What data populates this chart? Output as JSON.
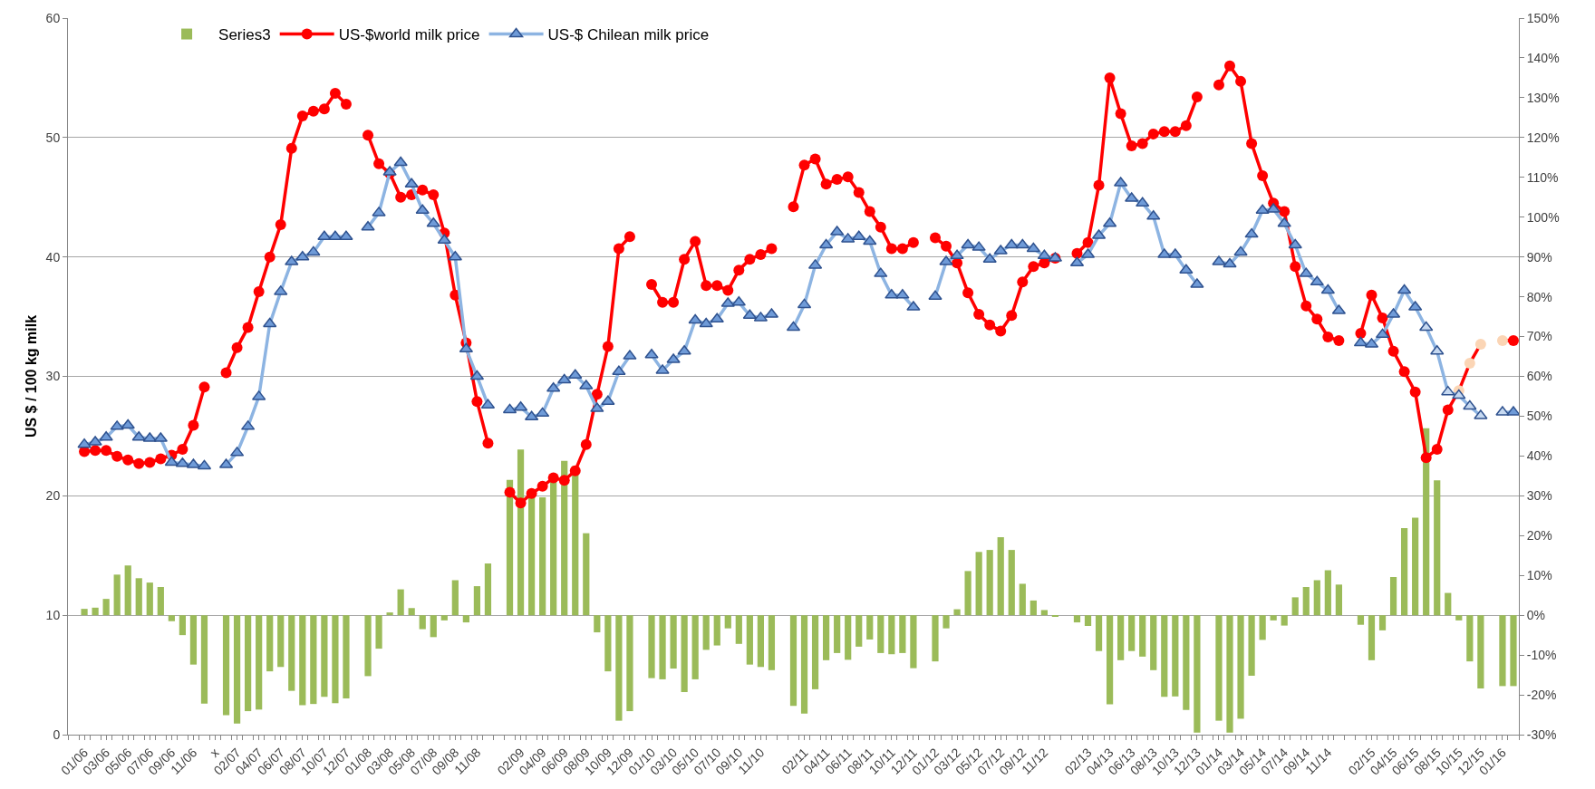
{
  "chart_data": {
    "type": "line",
    "ylabel": "US $ / 100 kg milk",
    "categories": [
      null,
      "01/06",
      null,
      "03/06",
      null,
      "05/06",
      null,
      "07/06",
      null,
      "09/06",
      null,
      "11/06",
      null,
      "x",
      null,
      "02/07",
      null,
      "04/07",
      null,
      "06/07",
      null,
      "08/07",
      null,
      "10/07",
      null,
      "12/07",
      null,
      "01/08",
      null,
      "03/08",
      null,
      "05/08",
      null,
      "07/08",
      null,
      "09/08",
      null,
      "11/08",
      null,
      null,
      null,
      "02/09",
      null,
      "04/09",
      null,
      "06/09",
      null,
      "08/09",
      null,
      "10/09",
      null,
      "12/09",
      null,
      "01/10",
      null,
      "03/10",
      null,
      "05/10",
      null,
      "07/10",
      null,
      "09/10",
      null,
      "11/10",
      null,
      null,
      null,
      "02/11",
      null,
      "04/11",
      null,
      "06/11",
      null,
      "08/11",
      null,
      "10/11",
      null,
      "12/11",
      null,
      "01/12",
      null,
      "03/12",
      null,
      "05/12",
      null,
      "07/12",
      null,
      "09/12",
      null,
      "11/12",
      null,
      null,
      null,
      "02/13",
      null,
      "04/13",
      null,
      "06/13",
      null,
      "08/13",
      null,
      "10/13",
      null,
      "12/13",
      null,
      "01/14",
      null,
      "03/14",
      null,
      "05/14",
      null,
      "07/14",
      null,
      "09/14",
      null,
      "11/14",
      null,
      null,
      null,
      "02/15",
      null,
      "04/15",
      null,
      "06/15",
      null,
      "08/15",
      null,
      "10/15",
      null,
      "12/15",
      null,
      "01/16",
      null
    ],
    "series": [
      {
        "name": "Series3",
        "type": "bar",
        "axis": "y2",
        "color": "#9bbb59",
        "values": [
          null,
          1.6,
          1.9,
          4.1,
          10.2,
          12.5,
          9.3,
          8.2,
          7.1,
          -1.5,
          -5.0,
          -12.4,
          -22.2,
          null,
          -25.1,
          -27.2,
          -24.1,
          -23.7,
          -14.1,
          -13.0,
          -19.0,
          -22.6,
          -22.3,
          -20.5,
          -22.1,
          -20.9,
          null,
          -15.3,
          -8.4,
          0.7,
          6.5,
          1.8,
          -3.5,
          -5.5,
          -1.3,
          8.8,
          -1.8,
          7.3,
          13.0,
          null,
          34.0,
          41.6,
          30.0,
          29.6,
          33.5,
          38.8,
          37.5,
          20.6,
          -4.3,
          -14.1,
          -26.5,
          -24.1,
          null,
          -15.8,
          -16.1,
          -13.4,
          -19.3,
          -16.1,
          -8.7,
          -7.6,
          -3.3,
          -7.2,
          -12.4,
          -13.0,
          -13.8,
          null,
          -22.8,
          -24.7,
          -18.6,
          -11.3,
          -9.5,
          -11.2,
          -7.9,
          -6.1,
          -9.5,
          -9.8,
          -9.5,
          -13.3,
          null,
          -11.6,
          -3.3,
          1.5,
          11.1,
          15.9,
          16.4,
          19.6,
          16.4,
          7.9,
          3.7,
          1.3,
          -0.3,
          null,
          -1.8,
          -2.7,
          -9.0,
          -22.4,
          -11.3,
          -9.0,
          -10.4,
          -13.8,
          -20.5,
          -20.4,
          -23.8,
          -29.5,
          null,
          -26.5,
          -29.5,
          -26.0,
          -15.2,
          -6.2,
          -1.3,
          -2.6,
          4.5,
          7.1,
          8.8,
          11.3,
          7.7,
          null,
          -2.4,
          -11.3,
          -3.8,
          9.6,
          21.9,
          24.5,
          47.0,
          33.9,
          5.6,
          -1.3,
          -11.6,
          -18.4,
          null,
          -17.8,
          -17.8
        ]
      },
      {
        "name": "US-$world milk price",
        "marker": "circle",
        "color": "#ff0000",
        "values": [
          null,
          23.7,
          23.8,
          23.8,
          23.3,
          23.0,
          22.7,
          22.8,
          23.1,
          23.4,
          23.9,
          25.9,
          29.1,
          null,
          30.3,
          32.4,
          34.1,
          37.1,
          40.0,
          42.7,
          49.1,
          51.8,
          52.2,
          52.4,
          53.7,
          52.8,
          null,
          50.2,
          47.8,
          47.0,
          45.0,
          45.2,
          45.6,
          45.2,
          42.0,
          36.8,
          32.8,
          27.9,
          24.4,
          null,
          20.3,
          19.4,
          20.2,
          20.8,
          21.5,
          21.3,
          22.1,
          24.3,
          28.5,
          32.5,
          40.7,
          41.7,
          null,
          37.7,
          36.2,
          36.2,
          39.8,
          41.3,
          37.6,
          37.6,
          37.2,
          38.9,
          39.8,
          40.2,
          40.7,
          null,
          44.2,
          47.7,
          48.2,
          46.1,
          46.5,
          46.7,
          45.4,
          43.8,
          42.5,
          40.7,
          40.7,
          41.2,
          null,
          41.6,
          40.9,
          39.5,
          37.0,
          35.2,
          34.3,
          33.8,
          35.1,
          37.9,
          39.2,
          39.5,
          39.9,
          null,
          40.3,
          41.2,
          46.0,
          55.0,
          52.0,
          49.3,
          49.5,
          50.3,
          50.5,
          50.5,
          51.0,
          53.4,
          null,
          54.4,
          56.0,
          54.7,
          49.5,
          46.8,
          44.5,
          43.8,
          39.2,
          35.9,
          34.8,
          33.3,
          33.0,
          null,
          33.6,
          36.8,
          34.9,
          32.1,
          30.4,
          28.7,
          23.2,
          23.9,
          27.2,
          28.8,
          31.1,
          32.7,
          null,
          33.0,
          33.0
        ],
        "colors": [
          "#ff0000",
          "#ff0000",
          "#ff0000",
          "#ff0000",
          "#ff0000",
          "#ff0000",
          "#ff0000",
          "#ff0000",
          "#ff0000",
          "#ff0000",
          "#ff0000",
          "#ff0000",
          "#ff0000",
          "#ff0000",
          "#ff0000",
          "#ff0000",
          "#ff0000",
          "#ff0000",
          "#ff0000",
          "#ff0000",
          "#ff0000",
          "#ff0000",
          "#ff0000",
          "#ff0000",
          "#ff0000",
          "#ff0000",
          "#ff0000",
          "#ff0000",
          "#ff0000",
          "#ff0000",
          "#ff0000",
          "#ff0000",
          "#ff0000",
          "#ff0000",
          "#ff0000",
          "#ff0000",
          "#ff0000",
          "#ff0000",
          "#ff0000",
          "#ff0000",
          "#ff0000",
          "#ff0000",
          "#ff0000",
          "#ff0000",
          "#ff0000",
          "#ff0000",
          "#ff0000",
          "#ff0000",
          "#ff0000",
          "#ff0000",
          "#ff0000",
          "#ff0000",
          "#ff0000",
          "#ff0000",
          "#ff0000",
          "#ff0000",
          "#ff0000",
          "#ff0000",
          "#ff0000",
          "#ff0000",
          "#ff0000",
          "#ff0000",
          "#ff0000",
          "#ff0000",
          "#ff0000",
          "#ff0000",
          "#ff0000",
          "#ff0000",
          "#ff0000",
          "#ff0000",
          "#ff0000",
          "#ff0000",
          "#ff0000",
          "#ff0000",
          "#ff0000",
          "#ff0000",
          "#ff0000",
          "#ff0000",
          "#ff0000",
          "#ff0000",
          "#ff0000",
          "#ff0000",
          "#ff0000",
          "#ff0000",
          "#ff0000",
          "#ff0000",
          "#ff0000",
          "#ff0000",
          "#ff0000",
          "#ff0000",
          "#ff0000",
          "#ff0000",
          "#ff0000",
          "#ff0000",
          "#ff0000",
          "#ff0000",
          "#ff0000",
          "#ff0000",
          "#ff0000",
          "#ff0000",
          "#ff0000",
          "#ff0000",
          "#ff0000",
          "#ff0000",
          "#ff0000",
          "#ff0000",
          "#ff0000",
          "#ff0000",
          "#ff0000",
          "#ff0000",
          "#ff0000",
          "#ff0000",
          "#ff0000",
          "#ff0000",
          "#ff0000",
          "#ff0000",
          "#ff0000",
          "#ff0000",
          "#ff0000",
          "#ff0000",
          "#ff0000",
          "#ff0000",
          "#ff0000",
          "#ff0000",
          "#ff0000",
          "#ff0000",
          "#ff0000",
          "#fbd5b5",
          "#fbd5b5",
          "#fbd5b5",
          "#ff0000",
          "#fbd5b5",
          "#ff0000"
        ]
      },
      {
        "name": "US-$ Chilean milk price",
        "marker": "triangle",
        "color": "#8db4e2",
        "values": [
          null,
          24.3,
          24.5,
          24.9,
          25.8,
          25.9,
          24.9,
          24.8,
          24.8,
          22.8,
          22.7,
          22.6,
          22.5,
          null,
          22.6,
          23.6,
          25.8,
          28.3,
          34.4,
          37.1,
          39.6,
          40.0,
          40.4,
          41.7,
          41.7,
          41.7,
          null,
          42.5,
          43.7,
          47.1,
          47.9,
          46.1,
          43.9,
          42.8,
          41.4,
          40.0,
          32.3,
          30.0,
          27.6,
          null,
          27.2,
          27.4,
          26.6,
          26.9,
          29.0,
          29.7,
          30.1,
          29.2,
          27.3,
          27.9,
          30.4,
          31.7,
          null,
          31.8,
          30.5,
          31.4,
          32.1,
          34.7,
          34.4,
          34.8,
          36.1,
          36.2,
          35.1,
          34.9,
          35.2,
          null,
          34.1,
          36.0,
          39.3,
          41.0,
          42.1,
          41.5,
          41.7,
          41.3,
          38.6,
          36.8,
          36.8,
          35.8,
          null,
          36.7,
          39.6,
          40.1,
          41.0,
          40.8,
          39.8,
          40.5,
          41.0,
          41.0,
          40.7,
          40.1,
          39.9,
          null,
          39.5,
          40.2,
          41.8,
          42.8,
          46.2,
          44.9,
          44.5,
          43.4,
          40.2,
          40.2,
          38.9,
          37.7,
          null,
          39.6,
          39.4,
          40.4,
          41.9,
          43.9,
          44.0,
          42.8,
          41.0,
          38.6,
          37.9,
          37.2,
          35.5,
          null,
          32.8,
          32.7,
          33.5,
          35.2,
          37.2,
          35.8,
          34.1,
          32.1,
          28.7,
          28.4,
          27.5,
          26.7,
          null,
          27.0,
          27.0
        ],
        "colors": [
          "#6f9bd8",
          "#6f9bd8",
          "#6f9bd8",
          "#6f9bd8",
          "#6f9bd8",
          "#6f9bd8",
          "#6f9bd8",
          "#6f9bd8",
          "#6f9bd8",
          "#6f9bd8",
          "#6f9bd8",
          "#6f9bd8",
          "#6f9bd8",
          "#6f9bd8",
          "#6f9bd8",
          "#6f9bd8",
          "#6f9bd8",
          "#6f9bd8",
          "#6f9bd8",
          "#6f9bd8",
          "#6f9bd8",
          "#6f9bd8",
          "#6f9bd8",
          "#6f9bd8",
          "#6f9bd8",
          "#6f9bd8",
          "#6f9bd8",
          "#6f9bd8",
          "#6f9bd8",
          "#6f9bd8",
          "#6f9bd8",
          "#6f9bd8",
          "#6f9bd8",
          "#6f9bd8",
          "#6f9bd8",
          "#6f9bd8",
          "#6f9bd8",
          "#6f9bd8",
          "#6f9bd8",
          "#6f9bd8",
          "#6f9bd8",
          "#6f9bd8",
          "#6f9bd8",
          "#6f9bd8",
          "#6f9bd8",
          "#6f9bd8",
          "#6f9bd8",
          "#6f9bd8",
          "#6f9bd8",
          "#6f9bd8",
          "#6f9bd8",
          "#6f9bd8",
          "#6f9bd8",
          "#6f9bd8",
          "#6f9bd8",
          "#6f9bd8",
          "#6f9bd8",
          "#6f9bd8",
          "#6f9bd8",
          "#6f9bd8",
          "#6f9bd8",
          "#6f9bd8",
          "#6f9bd8",
          "#6f9bd8",
          "#6f9bd8",
          "#6f9bd8",
          "#6f9bd8",
          "#6f9bd8",
          "#6f9bd8",
          "#6f9bd8",
          "#6f9bd8",
          "#6f9bd8",
          "#6f9bd8",
          "#6f9bd8",
          "#6f9bd8",
          "#6f9bd8",
          "#6f9bd8",
          "#6f9bd8",
          "#6f9bd8",
          "#6f9bd8",
          "#6f9bd8",
          "#6f9bd8",
          "#6f9bd8",
          "#6f9bd8",
          "#6f9bd8",
          "#6f9bd8",
          "#6f9bd8",
          "#6f9bd8",
          "#6f9bd8",
          "#6f9bd8",
          "#6f9bd8",
          "#6f9bd8",
          "#6f9bd8",
          "#6f9bd8",
          "#6f9bd8",
          "#6f9bd8",
          "#6f9bd8",
          "#6f9bd8",
          "#6f9bd8",
          "#6f9bd8",
          "#6f9bd8",
          "#6f9bd8",
          "#6f9bd8",
          "#6f9bd8",
          "#6f9bd8",
          "#6f9bd8",
          "#6f9bd8",
          "#6f9bd8",
          "#6f9bd8",
          "#6f9bd8",
          "#6f9bd8",
          "#6f9bd8",
          "#6f9bd8",
          "#6f9bd8",
          "#6f9bd8",
          "#6f9bd8",
          "#6f9bd8",
          "#6f9bd8",
          "#6f9bd8",
          "#6f9bd8",
          "#6f9bd8",
          "#6f9bd8",
          "#6f9bd8",
          "#6f9bd8",
          "#c6d9f1",
          "#c6d9f1",
          "#c6d9f1",
          "#c6d9f1",
          "#c6d9f1",
          "#c6d9f1",
          "#6f9bd8",
          "#c6d9f1",
          "#6f9bd8"
        ]
      }
    ],
    "ylim": [
      0,
      60
    ],
    "yticks": [
      0,
      10,
      20,
      30,
      40,
      50,
      60
    ],
    "y2lim": [
      -30,
      150
    ],
    "y2ticks": [
      {
        "value": -30,
        "label": "-30%"
      },
      {
        "value": -20,
        "label": "-20%"
      },
      {
        "value": -10,
        "label": "-10%"
      },
      {
        "value": 0,
        "label": "0%"
      },
      {
        "value": 10,
        "label": "10%"
      },
      {
        "value": 20,
        "label": "20%"
      },
      {
        "value": 30,
        "label": "30%"
      },
      {
        "value": 40,
        "label": "40%"
      },
      {
        "value": 50,
        "label": "50%"
      },
      {
        "value": 60,
        "label": "60%"
      },
      {
        "value": 70,
        "label": "70%"
      },
      {
        "value": 80,
        "label": "80%"
      },
      {
        "value": 90,
        "label": "90%"
      },
      {
        "value": 100,
        "label": "100%"
      },
      {
        "value": 110,
        "label": "110%"
      },
      {
        "value": 120,
        "label": "120%"
      },
      {
        "value": 130,
        "label": "130%"
      },
      {
        "value": 140,
        "label": "140%"
      },
      {
        "value": 150,
        "label": "150%"
      }
    ],
    "grid": "y",
    "legend": "top"
  }
}
